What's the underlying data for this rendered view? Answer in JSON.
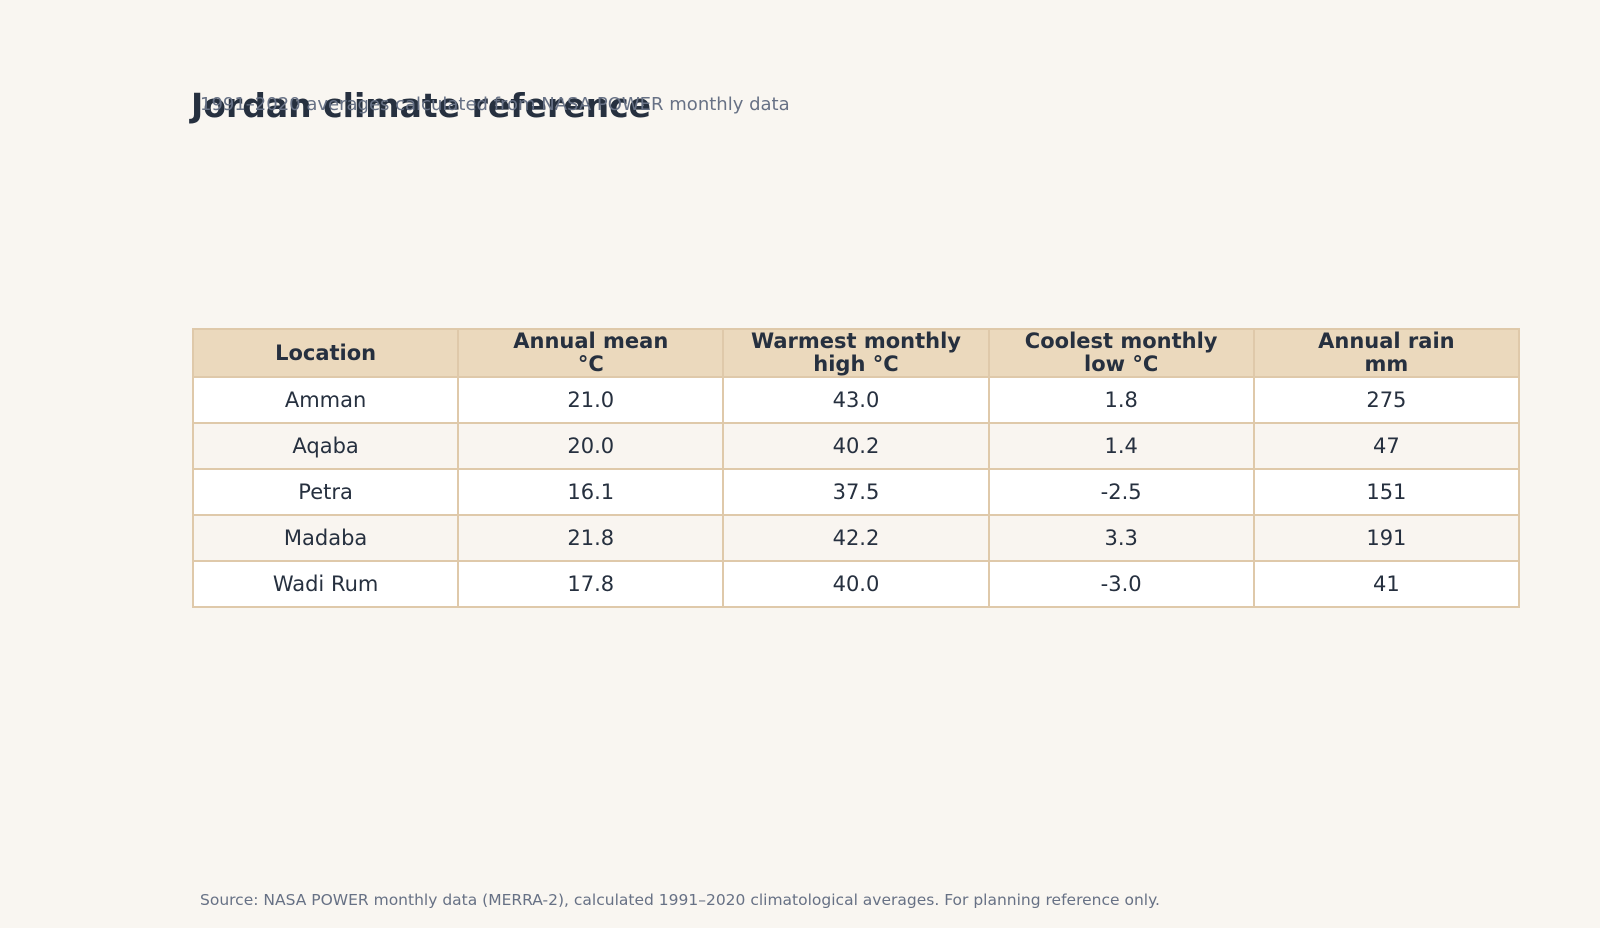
{
  "title": "Jordan climate reference",
  "subtitle": "1991–2020 averages calculated from NASA POWER monthly data",
  "chart_data": {
    "type": "table",
    "columns": [
      {
        "line1": "Location",
        "line2": ""
      },
      {
        "line1": "Annual mean",
        "line2": "°C"
      },
      {
        "line1": "Warmest monthly",
        "line2": "high °C"
      },
      {
        "line1": "Coolest monthly",
        "line2": "low °C"
      },
      {
        "line1": "Annual rain",
        "line2": "mm"
      }
    ],
    "rows": [
      [
        "Amman",
        "21.0",
        "43.0",
        "1.8",
        "275"
      ],
      [
        "Aqaba",
        "20.0",
        "40.2",
        "1.4",
        "47"
      ],
      [
        "Petra",
        "16.1",
        "37.5",
        "-2.5",
        "151"
      ],
      [
        "Madaba",
        "21.8",
        "42.2",
        "3.3",
        "191"
      ],
      [
        "Wadi Rum",
        "17.8",
        "40.0",
        "-3.0",
        "41"
      ]
    ]
  },
  "source": "Source: NASA POWER monthly data (MERRA-2), calculated 1991–2020 climatological averages. For planning reference only.",
  "colors": {
    "background": "#f9f6f1",
    "header_fill": "#ebd9bd",
    "border": "#dfc9aa",
    "text": "#26303f",
    "muted_text": "#677185"
  }
}
